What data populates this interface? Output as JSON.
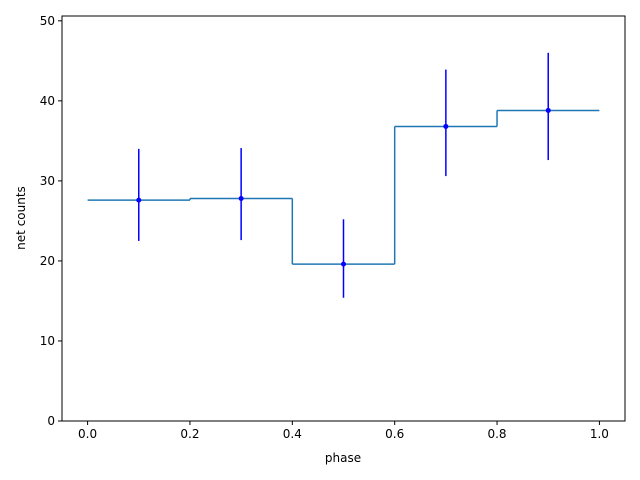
{
  "chart_data": {
    "type": "histogram",
    "xlabel": "phase",
    "ylabel": "net counts",
    "bins": [
      0,
      0.2,
      0.4,
      0.6,
      0.8,
      1.0
    ],
    "series": [
      {
        "color": "#1f77b4",
        "error_color": "#0000ff",
        "values": [
          27.6,
          27.8,
          19.6,
          36.8,
          38.8
        ],
        "errors_minus": [
          5.1,
          5.2,
          4.2,
          6.2,
          6.2
        ],
        "errors_plus": [
          6.4,
          6.3,
          5.6,
          7.1,
          7.2
        ]
      }
    ],
    "xlim": [
      -0.05,
      1.05
    ],
    "ylim": [
      0,
      50.6
    ],
    "xticks": [
      {
        "value": 0,
        "label": "0.0"
      },
      0.2,
      0.4,
      0.6,
      0.8,
      {
        "value": 1,
        "label": "1.0"
      }
    ],
    "yticks": [
      0,
      10,
      20,
      30,
      40,
      50
    ]
  }
}
